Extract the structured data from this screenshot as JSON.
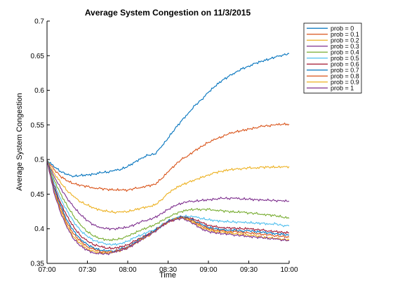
{
  "chart_data": {
    "type": "line",
    "title": "Average System Congestion on 11/3/2015",
    "xlabel": "Time",
    "ylabel": "Average System Congestion",
    "x_ticks": [
      "07:00",
      "07:30",
      "08:00",
      "08:30",
      "09:00",
      "09:30",
      "10:00"
    ],
    "x_tick_minutes": [
      0,
      30,
      60,
      90,
      120,
      150,
      180
    ],
    "xlim_minutes": [
      0,
      180
    ],
    "y_ticks": [
      "0.35",
      "0.4",
      "0.45",
      "0.5",
      "0.55",
      "0.6",
      "0.65",
      "0.7"
    ],
    "ylim": [
      0.35,
      0.7
    ],
    "grid": false,
    "legend_position": "top-right",
    "x_minutes": [
      0,
      5,
      10,
      15,
      20,
      25,
      30,
      35,
      40,
      45,
      50,
      55,
      60,
      65,
      70,
      75,
      80,
      85,
      90,
      95,
      100,
      105,
      110,
      115,
      120,
      125,
      130,
      135,
      140,
      145,
      150,
      155,
      160,
      165,
      170,
      175,
      180
    ],
    "series": [
      {
        "name": "prob = 0",
        "color": "#0072bd",
        "values": [
          0.499,
          0.49,
          0.483,
          0.478,
          0.476,
          0.477,
          0.478,
          0.479,
          0.481,
          0.482,
          0.484,
          0.486,
          0.49,
          0.496,
          0.502,
          0.506,
          0.508,
          0.518,
          0.531,
          0.544,
          0.556,
          0.567,
          0.578,
          0.587,
          0.597,
          0.606,
          0.614,
          0.62,
          0.626,
          0.631,
          0.635,
          0.639,
          0.642,
          0.645,
          0.648,
          0.651,
          0.653
        ]
      },
      {
        "name": "prob = 0.1",
        "color": "#d95319",
        "values": [
          0.499,
          0.486,
          0.476,
          0.469,
          0.465,
          0.463,
          0.461,
          0.459,
          0.458,
          0.457,
          0.456,
          0.456,
          0.456,
          0.458,
          0.46,
          0.462,
          0.464,
          0.472,
          0.482,
          0.492,
          0.5,
          0.506,
          0.513,
          0.519,
          0.525,
          0.529,
          0.533,
          0.537,
          0.54,
          0.542,
          0.544,
          0.546,
          0.548,
          0.549,
          0.55,
          0.551,
          0.551
        ]
      },
      {
        "name": "prob = 0.2",
        "color": "#edb120",
        "values": [
          0.499,
          0.481,
          0.467,
          0.455,
          0.446,
          0.439,
          0.434,
          0.43,
          0.427,
          0.425,
          0.424,
          0.424,
          0.425,
          0.427,
          0.43,
          0.432,
          0.434,
          0.442,
          0.451,
          0.458,
          0.463,
          0.467,
          0.471,
          0.474,
          0.478,
          0.481,
          0.483,
          0.485,
          0.486,
          0.487,
          0.488,
          0.488,
          0.489,
          0.489,
          0.489,
          0.489,
          0.49
        ]
      },
      {
        "name": "prob = 0.3",
        "color": "#7e2f8e",
        "values": [
          0.499,
          0.477,
          0.459,
          0.444,
          0.431,
          0.42,
          0.412,
          0.405,
          0.402,
          0.4,
          0.4,
          0.401,
          0.402,
          0.406,
          0.41,
          0.413,
          0.416,
          0.422,
          0.428,
          0.433,
          0.437,
          0.439,
          0.44,
          0.441,
          0.442,
          0.443,
          0.444,
          0.444,
          0.444,
          0.443,
          0.443,
          0.442,
          0.442,
          0.441,
          0.441,
          0.44,
          0.44
        ]
      },
      {
        "name": "prob = 0.4",
        "color": "#77ac30",
        "values": [
          0.499,
          0.472,
          0.451,
          0.433,
          0.418,
          0.405,
          0.396,
          0.389,
          0.386,
          0.384,
          0.384,
          0.386,
          0.389,
          0.394,
          0.398,
          0.402,
          0.406,
          0.411,
          0.417,
          0.421,
          0.425,
          0.427,
          0.428,
          0.428,
          0.428,
          0.427,
          0.426,
          0.425,
          0.424,
          0.424,
          0.423,
          0.422,
          0.421,
          0.42,
          0.419,
          0.417,
          0.415
        ]
      },
      {
        "name": "prob = 0.5",
        "color": "#4dbeee",
        "values": [
          0.499,
          0.467,
          0.444,
          0.425,
          0.41,
          0.397,
          0.389,
          0.383,
          0.38,
          0.378,
          0.377,
          0.379,
          0.382,
          0.387,
          0.391,
          0.395,
          0.399,
          0.405,
          0.411,
          0.415,
          0.418,
          0.418,
          0.417,
          0.415,
          0.413,
          0.412,
          0.411,
          0.41,
          0.41,
          0.409,
          0.409,
          0.408,
          0.408,
          0.407,
          0.407,
          0.405,
          0.404
        ]
      },
      {
        "name": "prob = 0.6",
        "color": "#a2142f",
        "values": [
          0.499,
          0.463,
          0.438,
          0.418,
          0.402,
          0.39,
          0.382,
          0.377,
          0.374,
          0.372,
          0.372,
          0.374,
          0.377,
          0.382,
          0.387,
          0.392,
          0.397,
          0.404,
          0.41,
          0.414,
          0.417,
          0.416,
          0.413,
          0.409,
          0.405,
          0.403,
          0.402,
          0.401,
          0.401,
          0.4,
          0.4,
          0.399,
          0.398,
          0.397,
          0.396,
          0.395,
          0.394
        ]
      },
      {
        "name": "prob = 0.7",
        "color": "#0072bd",
        "values": [
          0.499,
          0.46,
          0.434,
          0.412,
          0.396,
          0.385,
          0.377,
          0.372,
          0.369,
          0.368,
          0.368,
          0.371,
          0.374,
          0.38,
          0.386,
          0.391,
          0.397,
          0.404,
          0.411,
          0.415,
          0.417,
          0.415,
          0.411,
          0.406,
          0.402,
          0.4,
          0.399,
          0.398,
          0.398,
          0.397,
          0.397,
          0.396,
          0.395,
          0.394,
          0.393,
          0.392,
          0.391
        ]
      },
      {
        "name": "prob = 0.8",
        "color": "#d95319",
        "values": [
          0.499,
          0.457,
          0.43,
          0.408,
          0.392,
          0.382,
          0.374,
          0.37,
          0.367,
          0.366,
          0.367,
          0.37,
          0.373,
          0.379,
          0.385,
          0.39,
          0.396,
          0.404,
          0.41,
          0.414,
          0.417,
          0.414,
          0.41,
          0.404,
          0.4,
          0.398,
          0.397,
          0.396,
          0.396,
          0.395,
          0.394,
          0.393,
          0.392,
          0.391,
          0.39,
          0.389,
          0.388
        ]
      },
      {
        "name": "prob = 0.9",
        "color": "#edb120",
        "values": [
          0.499,
          0.455,
          0.427,
          0.404,
          0.388,
          0.378,
          0.371,
          0.367,
          0.365,
          0.365,
          0.366,
          0.369,
          0.372,
          0.378,
          0.384,
          0.39,
          0.396,
          0.403,
          0.41,
          0.414,
          0.416,
          0.413,
          0.408,
          0.402,
          0.398,
          0.396,
          0.395,
          0.394,
          0.393,
          0.392,
          0.391,
          0.39,
          0.388,
          0.387,
          0.386,
          0.385,
          0.384
        ]
      },
      {
        "name": "prob = 1",
        "color": "#7e2f8e",
        "values": [
          0.499,
          0.453,
          0.424,
          0.401,
          0.385,
          0.375,
          0.369,
          0.365,
          0.364,
          0.364,
          0.366,
          0.369,
          0.372,
          0.378,
          0.384,
          0.39,
          0.396,
          0.403,
          0.41,
          0.413,
          0.415,
          0.412,
          0.406,
          0.4,
          0.396,
          0.394,
          0.393,
          0.392,
          0.391,
          0.39,
          0.389,
          0.388,
          0.387,
          0.386,
          0.385,
          0.384,
          0.383
        ]
      }
    ]
  }
}
